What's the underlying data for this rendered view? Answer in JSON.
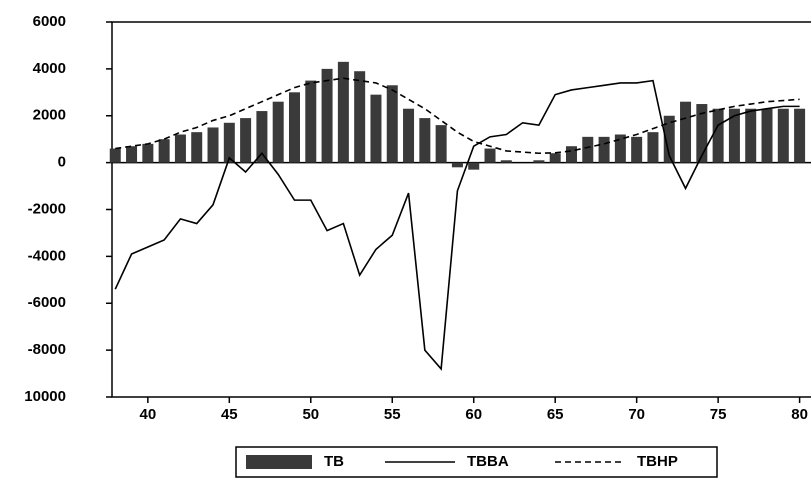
{
  "chart_data": {
    "type": "bar",
    "x": [
      38,
      39,
      40,
      41,
      42,
      43,
      44,
      45,
      46,
      47,
      48,
      49,
      50,
      51,
      52,
      53,
      54,
      55,
      56,
      57,
      58,
      59,
      60,
      61,
      62,
      63,
      64,
      65,
      66,
      67,
      68,
      69,
      70,
      71,
      72,
      73,
      74,
      75,
      76,
      77,
      78,
      79,
      80
    ],
    "series": [
      {
        "name": "TB",
        "type": "bar",
        "color": "#3a3a3a",
        "values": [
          600,
          700,
          800,
          1000,
          1200,
          1300,
          1500,
          1700,
          1900,
          2200,
          2600,
          3000,
          3500,
          4000,
          4300,
          3900,
          2900,
          3300,
          2300,
          1900,
          1600,
          -200,
          -300,
          600,
          100,
          0,
          100,
          400,
          700,
          1100,
          1100,
          1200,
          1100,
          1300,
          2000,
          2600,
          2500,
          2300,
          2300,
          2300,
          2300,
          2300,
          2300
        ]
      },
      {
        "name": "TBBA",
        "type": "line",
        "style": "solid",
        "color": "#000000",
        "values": [
          -5400,
          -3900,
          -3600,
          -3300,
          -2400,
          -2600,
          -1800,
          200,
          -400,
          400,
          -500,
          -1600,
          -1600,
          -2900,
          -2600,
          -4800,
          -3700,
          -3100,
          -1300,
          -8000,
          -8800,
          -1200,
          700,
          1100,
          1200,
          1700,
          1600,
          2900,
          3100,
          3200,
          3300,
          3400,
          3400,
          3500,
          300,
          -1100,
          300,
          1600,
          2000,
          2200,
          2300,
          2400,
          2400
        ]
      },
      {
        "name": "TBHP",
        "type": "line",
        "style": "dashed",
        "color": "#000000",
        "values": [
          600,
          700,
          800,
          1000,
          1300,
          1500,
          1800,
          2000,
          2300,
          2600,
          2900,
          3200,
          3400,
          3500,
          3600,
          3500,
          3400,
          3100,
          2700,
          2300,
          1800,
          1300,
          900,
          700,
          500,
          450,
          400,
          420,
          500,
          650,
          800,
          1000,
          1200,
          1450,
          1700,
          1900,
          2100,
          2250,
          2400,
          2500,
          2600,
          2650,
          2700
        ]
      }
    ],
    "xlim": [
      37.8,
      80.7
    ],
    "xticks": [
      40,
      45,
      50,
      55,
      60,
      65,
      70,
      75,
      80
    ],
    "ylim": [
      -10000,
      6000
    ],
    "yticks": [
      {
        "value": -10000,
        "label": "10000"
      },
      -8000,
      -6000,
      -4000,
      -2000,
      0,
      2000,
      4000,
      6000
    ]
  }
}
